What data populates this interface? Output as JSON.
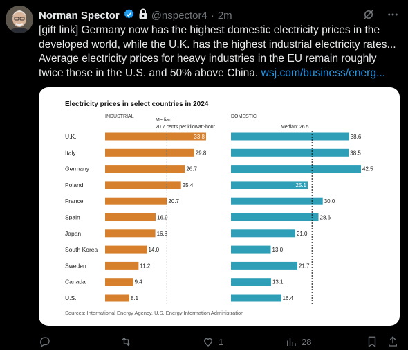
{
  "tweet": {
    "author_name": "Norman Spector",
    "author_handle": "@nspector4",
    "separator": "·",
    "time": "2m",
    "text": "[gift link] Germany now has the highest domestic electricity prices in the developed world, while the U.K. has the highest industrial electricity rates... Average electricity prices for heavy industries in the EU remain roughly twice those in the U.S. and 50% above China.",
    "link_text": "wsj.com/business/energ..."
  },
  "icons": {
    "verified": "verified-badge-icon",
    "lock": "lock-icon",
    "grok": "grok-icon",
    "more": "more-icon"
  },
  "actions": {
    "reply_count": "",
    "retweet_count": "",
    "like_count": "1",
    "views_count": "28"
  },
  "colors": {
    "accent": "#1d9bf0",
    "industrial_bar": "#d67f2c",
    "domestic_bar": "#2f9fb8"
  },
  "chart_data": [
    {
      "type": "bar",
      "title": "Electricity prices in select countries in 2024",
      "panel": "INDUSTRIAL",
      "median_label": "Median:",
      "median_label_2": "20.7 cents per kilowatt-hour",
      "median": 20.7,
      "categories": [
        "U.K.",
        "Italy",
        "Germany",
        "Poland",
        "France",
        "Spain",
        "Japan",
        "South Korea",
        "Sweden",
        "Canada",
        "U.S."
      ],
      "values": [
        33.8,
        29.8,
        26.7,
        25.4,
        20.7,
        16.9,
        16.8,
        14.0,
        11.2,
        9.4,
        8.1
      ],
      "value_labels": [
        "33.8",
        "29.8",
        "26.7",
        "25.4",
        "20.7",
        "16.9",
        "16.8",
        "14.0",
        "11.2",
        "9.4",
        "8.1"
      ]
    },
    {
      "type": "bar",
      "panel": "DOMESTIC",
      "median_label": "Median: 26.5",
      "median": 26.5,
      "categories": [
        "U.K.",
        "Italy",
        "Germany",
        "Poland",
        "France",
        "Spain",
        "Japan",
        "South Korea",
        "Sweden",
        "Canada",
        "U.S."
      ],
      "values": [
        38.6,
        38.5,
        42.5,
        25.1,
        30.0,
        28.6,
        21.0,
        13.0,
        21.7,
        13.1,
        16.4
      ],
      "value_labels": [
        "38.6",
        "38.5",
        "42.5",
        "25.1",
        "30.0",
        "28.6",
        "21.0",
        "13.0",
        "21.7",
        "13.1",
        "16.4"
      ]
    }
  ],
  "chart_source": "Sources: International Energy Agency, U.S. Energy Information Administration"
}
